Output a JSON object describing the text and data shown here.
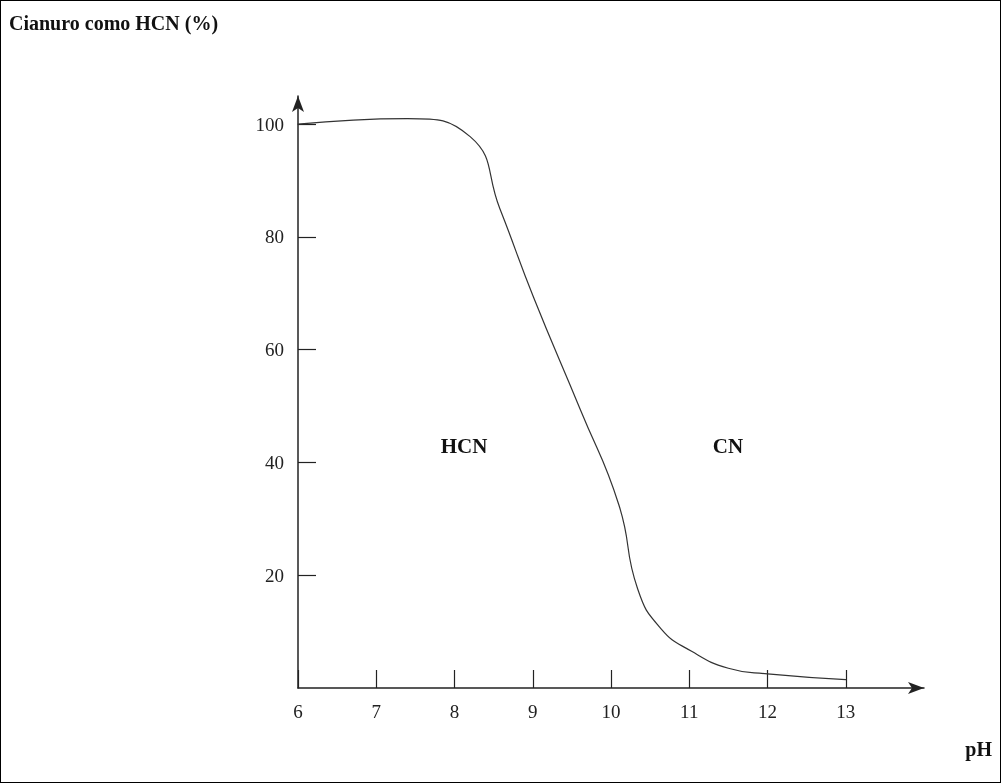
{
  "chart_data": {
    "type": "line",
    "ylabel": "Cianuro como HCN (%)",
    "xlabel": "pH",
    "x": [
      6,
      7.4,
      8.2,
      8.58,
      9.01,
      9.61,
      10.1,
      10.34,
      10.64,
      11.03,
      11.5,
      12,
      13
    ],
    "values": [
      100,
      101,
      97.8,
      85,
      69.3,
      49.3,
      32.5,
      17.6,
      10.5,
      6.5,
      3.5,
      2.5,
      1.5
    ],
    "color": "#333333",
    "marker": "none",
    "line_style": "solid",
    "xlim": [
      6,
      14
    ],
    "ylim": [
      0,
      105
    ],
    "xticks": [
      6,
      7,
      8,
      9,
      10,
      11,
      12,
      13
    ],
    "yticks": [
      20,
      40,
      60,
      80,
      100
    ],
    "annotations": [
      "HCN",
      "CN"
    ]
  }
}
